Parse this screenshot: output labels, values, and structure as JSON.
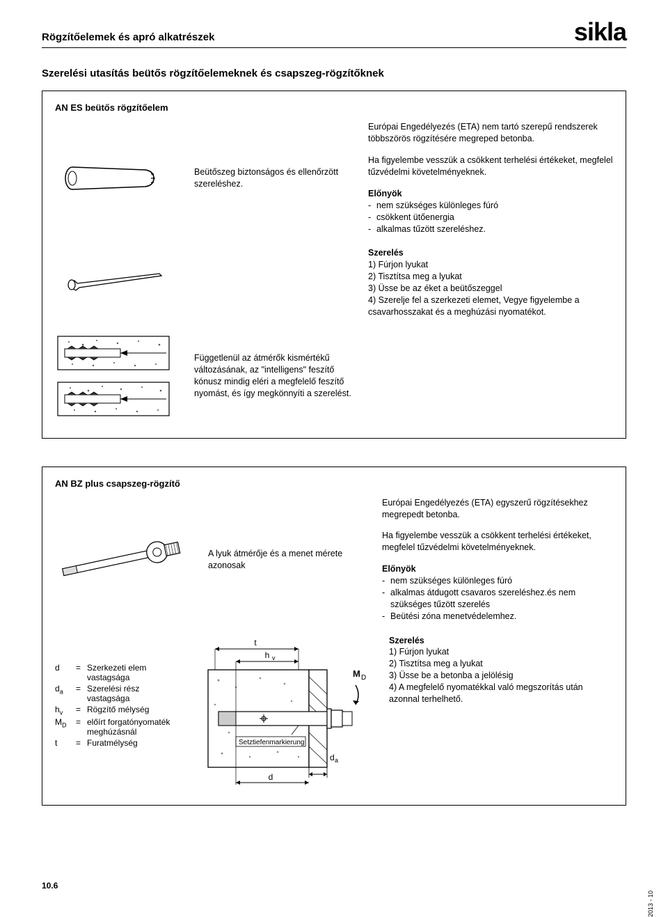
{
  "header": {
    "title": "Rögzítőelemek és apró alkatrészek",
    "logo_text": "sikla"
  },
  "section_title": "Szerelési utasítás beütős rögzítőelemeknek és csapszeg-rögzítőknek",
  "product1": {
    "name": "AN ES beütős rögzítőelem",
    "mid1": "Beütőszeg biztonságos és ellenőrzött szereléshez.",
    "mid2": "Függetlenül az átmérők kismértékű változásának, az \"intelligens\" feszítő kónusz mindig eléri a megfelelő feszítő nyomást, és így megkönnyíti a szerelést.",
    "right_intro": "Európai Engedélyezés (ETA) nem tartó szerepű rendszerek többszörös rögzítésére megreped betonba.",
    "right_note": "Ha figyelembe vesszük a csökkent terhelési értékeket, megfelel tűzvédelmi követelményeknek.",
    "advantages_title": "Előnyök",
    "advantages": [
      "nem szükséges különleges fúró",
      "csökkent ütőenergia",
      "alkalmas tűzött szereléshez."
    ],
    "assembly_title": "Szerelés",
    "assembly": [
      "1) Fúrjon lyukat",
      "2) Tisztítsa meg a lyukat",
      "3) Üsse be az éket a beütőszeggel",
      "4) Szerelje fel a szerkezeti elemet, Vegye figyelembe a csavarhos­szakat és a meghúzási nyomaté­kot."
    ]
  },
  "product2": {
    "name": "AN BZ plus csapszeg-rögzítő",
    "mid1": "A lyuk átmérője és a menet mérete azonosak",
    "right_intro": "Európai Engedélyezés (ETA) egyszerű rögzítésekhez megrepedt betonba.",
    "right_note": "Ha figyelembe vesszük a csökkent terhelési értékeket, megfelel tűzvédelmi követelményeknek.",
    "advantages_title": "Előnyök",
    "advantages": [
      "nem szükséges különleges fúró",
      "alkalmas átdugott csavaros szereléshez.és nem szükséges tűzött szerelés",
      "Beütési zóna menetvédelemhez."
    ],
    "assembly_title": "Szerelés",
    "assembly": [
      "1) Fúrjon lyukat",
      "2) Tisztítsa meg a lyukat",
      "3) Üsse be a betonba a jelölésig",
      "4) A megfelelő nyomatékkal való megszorítás után azonnal terhelhető."
    ],
    "legend": [
      {
        "sym": "d",
        "sub": "",
        "txt": "Szerkezeti elem vastagsága"
      },
      {
        "sym": "d",
        "sub": "a",
        "txt": "Szerelési rész vastagsága"
      },
      {
        "sym": "h",
        "sub": "v",
        "txt": "Rögzítő mélység"
      },
      {
        "sym": "M",
        "sub": "D",
        "txt": "előírt forgatónyomaték meghúzásnál"
      },
      {
        "sym": "t",
        "sub": "",
        "txt": "Furatmélység"
      }
    ],
    "diagram_labels": {
      "t": "t",
      "hv": "hv",
      "md": "MD",
      "setztiefen": "Setztiefenmarkierung",
      "da": "da",
      "d": "d"
    }
  },
  "footer": {
    "page": "10.6",
    "date": "2013 - 10"
  },
  "colors": {
    "text": "#000000",
    "bg": "#ffffff",
    "line": "#000000",
    "hatch": "#888888"
  }
}
